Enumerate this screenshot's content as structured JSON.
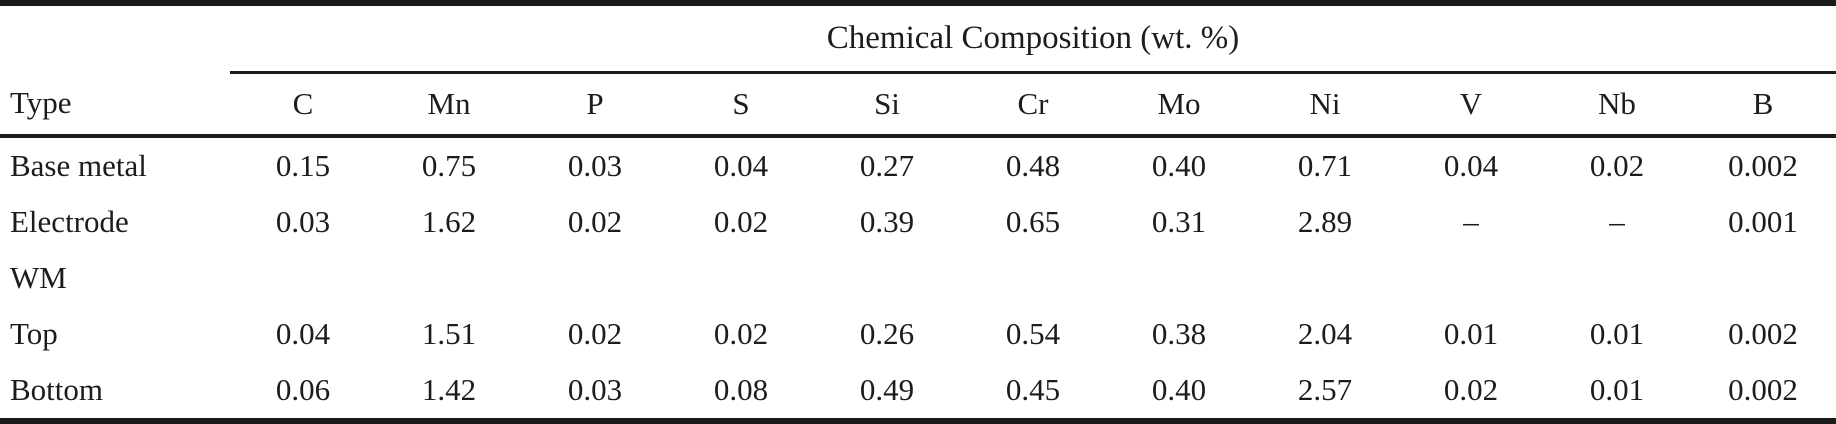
{
  "table": {
    "title": "Chemical Composition (wt. %)",
    "type_header": "Type",
    "columns": [
      "C",
      "Mn",
      "P",
      "S",
      "Si",
      "Cr",
      "Mo",
      "Ni",
      "V",
      "Nb",
      "B"
    ],
    "rows": [
      {
        "label": "Base metal",
        "values": [
          "0.15",
          "0.75",
          "0.03",
          "0.04",
          "0.27",
          "0.48",
          "0.40",
          "0.71",
          "0.04",
          "0.02",
          "0.002"
        ]
      },
      {
        "label": "Electrode",
        "values": [
          "0.03",
          "1.62",
          "0.02",
          "0.02",
          "0.39",
          "0.65",
          "0.31",
          "2.89",
          "–",
          "–",
          "0.001"
        ]
      },
      {
        "label": "WM",
        "values": [
          "",
          "",
          "",
          "",
          "",
          "",
          "",
          "",
          "",
          "",
          ""
        ]
      },
      {
        "label": "Top",
        "values": [
          "0.04",
          "1.51",
          "0.02",
          "0.02",
          "0.26",
          "0.54",
          "0.38",
          "2.04",
          "0.01",
          "0.01",
          "0.002"
        ]
      },
      {
        "label": "Bottom",
        "values": [
          "0.06",
          "1.42",
          "0.03",
          "0.08",
          "0.49",
          "0.45",
          "0.40",
          "2.57",
          "0.02",
          "0.01",
          "0.002"
        ]
      }
    ]
  },
  "colors": {
    "text": "#1c1c1c",
    "rule": "#1b1b1b",
    "background": "#ffffff"
  }
}
